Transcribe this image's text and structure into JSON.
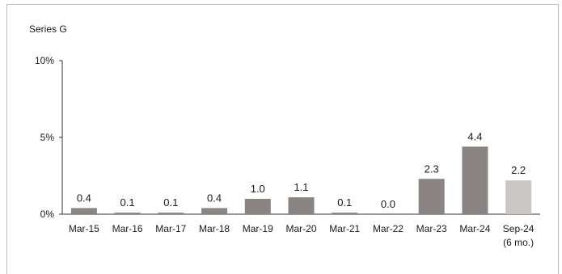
{
  "chart_data": {
    "type": "bar",
    "title": "Series G",
    "xlabel": "",
    "ylabel": "",
    "ylim": [
      0,
      10
    ],
    "yticks": [
      {
        "value": 0,
        "label": "0%"
      },
      {
        "value": 5,
        "label": "5%"
      },
      {
        "value": 10,
        "label": "10%"
      }
    ],
    "categories": [
      [
        "Mar-15"
      ],
      [
        "Mar-16"
      ],
      [
        "Mar-17"
      ],
      [
        "Mar-18"
      ],
      [
        "Mar-19"
      ],
      [
        "Mar-20"
      ],
      [
        "Mar-21"
      ],
      [
        "Mar-22"
      ],
      [
        "Mar-23"
      ],
      [
        "Mar-24"
      ],
      [
        "Sep-24",
        "(6 mo.)"
      ]
    ],
    "values": [
      0.4,
      0.1,
      0.1,
      0.4,
      1.0,
      1.1,
      0.1,
      0.0,
      2.3,
      4.4,
      2.2
    ],
    "value_labels": [
      "0.4",
      "0.1",
      "0.1",
      "0.4",
      "1.0",
      "1.1",
      "0.1",
      "0.0",
      "2.3",
      "4.4",
      "2.2"
    ],
    "bar_colors": [
      "#8a8582",
      "#8a8582",
      "#8a8582",
      "#8a8582",
      "#8a8582",
      "#8a8582",
      "#8a8582",
      "#8a8582",
      "#8a8582",
      "#8a8582",
      "#c9c6c4"
    ],
    "grid": false,
    "legend": "none"
  }
}
